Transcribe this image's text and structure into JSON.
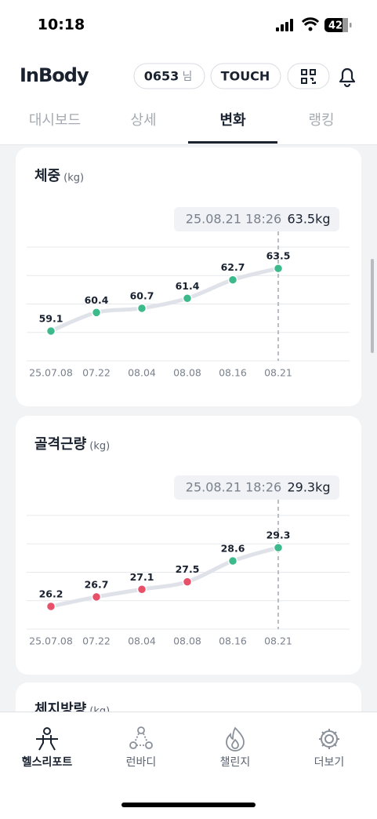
{
  "status": {
    "time": "10:18",
    "battery": "42"
  },
  "header": {
    "logo": "InBody",
    "user_id": "0653",
    "user_suffix": "님",
    "touch": "TOUCH"
  },
  "tabs": [
    "대시보드",
    "상세",
    "변화",
    "랭킹"
  ],
  "active_tab": 2,
  "charts": [
    {
      "type": "line",
      "title": "체중",
      "unit": "(kg)",
      "tooltip_time": "25.08.21 18:26",
      "tooltip_value": "63.5kg",
      "categories": [
        "25.07.08",
        "07.22",
        "08.04",
        "08.08",
        "08.16",
        "08.21"
      ],
      "values": [
        59.1,
        60.4,
        60.7,
        61.4,
        62.7,
        63.5
      ],
      "point_colors": [
        "#3dba8c",
        "#3dba8c",
        "#3dba8c",
        "#3dba8c",
        "#3dba8c",
        "#3dba8c"
      ],
      "line_color": "#dfe2e8",
      "ylim": [
        57.0,
        65.0
      ]
    },
    {
      "type": "line",
      "title": "골격근량",
      "unit": "(kg)",
      "tooltip_time": "25.08.21 18:26",
      "tooltip_value": "29.3kg",
      "categories": [
        "25.07.08",
        "07.22",
        "08.04",
        "08.08",
        "08.16",
        "08.21"
      ],
      "values": [
        26.2,
        26.7,
        27.1,
        27.5,
        28.6,
        29.3
      ],
      "point_colors": [
        "#e8506a",
        "#e8506a",
        "#e8506a",
        "#e8506a",
        "#3dba8c",
        "#3dba8c"
      ],
      "line_color": "#dfe2e8",
      "ylim": [
        25.0,
        31.0
      ]
    }
  ],
  "next_card": {
    "title": "체지방량",
    "unit": "(kg)"
  },
  "nav": [
    "헬스리포트",
    "런바디",
    "챌린지",
    "더보기"
  ]
}
